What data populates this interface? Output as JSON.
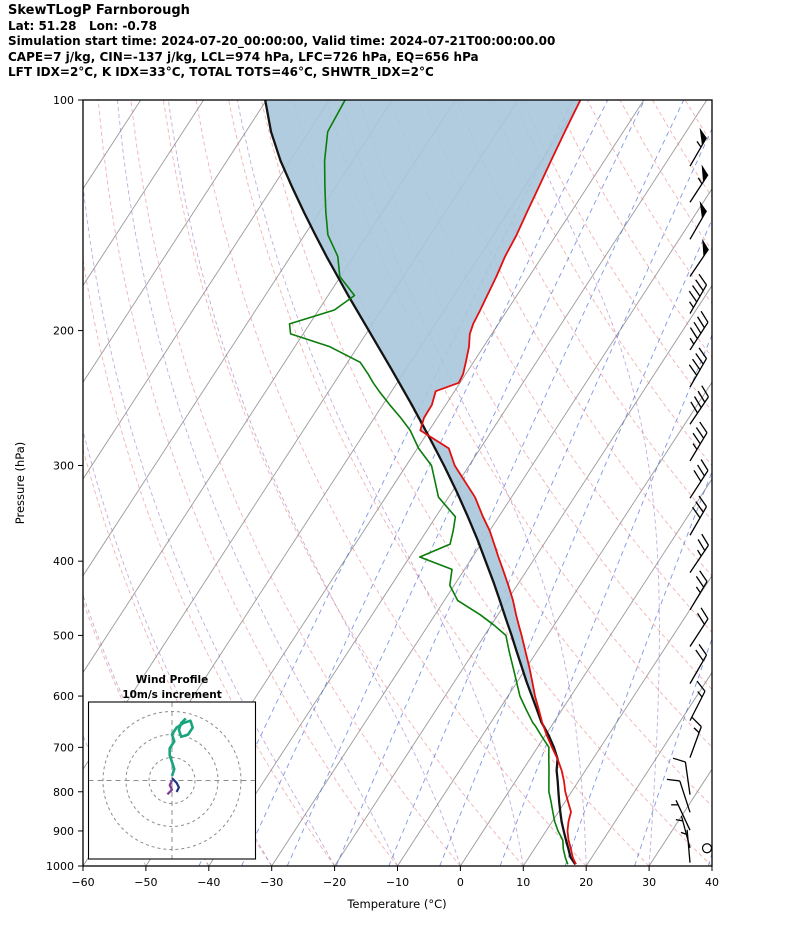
{
  "header": {
    "line1": "SkewTLogP Farnborough",
    "line2": "Lat: 51.28   Lon: -0.78",
    "line3": "Simulation start time: 2024-07-20_00:00:00, Valid time: 2024-07-21T00:00:00.00",
    "line4": "CAPE=7 j/kg, CIN=-137 j/kg, LCL=974 hPa, LFC=726 hPa, EQ=656 hPa",
    "line5": "LFT IDX=2°C, K IDX=33°C, TOTAL TOTS=46°C, SHWTR_IDX=2°C"
  },
  "indices": {
    "cape_jkg": 7,
    "cin_jkg": -137,
    "lcl_hpa": 974,
    "lfc_hpa": 726,
    "eq_hpa": 656,
    "lft_idx_c": 2,
    "k_idx_c": 33,
    "total_tots_c": 46,
    "shwtr_idx_c": 2,
    "lat": 51.28,
    "lon": -0.78
  },
  "chart_data": {
    "type": "skewt-logp",
    "title": "SkewTLogP Farnborough",
    "xlabel": "Temperature (°C)",
    "ylabel": "Pressure (hPa)",
    "xlim": [
      -60,
      40
    ],
    "ylim_hpa": [
      1000,
      100
    ],
    "t_ticks": [
      -60,
      -50,
      -40,
      -30,
      -20,
      -10,
      0,
      10,
      20,
      30,
      40
    ],
    "p_ticks": [
      100,
      200,
      300,
      400,
      500,
      600,
      700,
      800,
      900,
      1000
    ],
    "background": {
      "isotherm_step_c": 10,
      "dry_adiabats_theta_c": [
        -40,
        -30,
        -20,
        -10,
        0,
        10,
        20,
        30,
        40,
        50,
        60,
        70,
        80,
        90,
        100,
        110,
        120,
        130,
        140,
        150,
        160,
        170,
        180
      ],
      "moist_adiabat_start_c": [
        -60,
        -50,
        -40,
        -30,
        -20,
        -10,
        0,
        10,
        20,
        30,
        40
      ],
      "mixing_ratio_g_kg": [
        0.1,
        0.2,
        0.4,
        0.8,
        1.6,
        3,
        6,
        12,
        24,
        48
      ]
    },
    "sounding": {
      "pressure_hpa": [
        995,
        975,
        950,
        925,
        900,
        875,
        850,
        825,
        800,
        775,
        750,
        725,
        700,
        675,
        656,
        650,
        625,
        600,
        575,
        550,
        525,
        500,
        485,
        470,
        450,
        430,
        410,
        395,
        380,
        365,
        350,
        330,
        300,
        285,
        270,
        260,
        250,
        240,
        234,
        228,
        220,
        210,
        202,
        196,
        188,
        180,
        170,
        160,
        150,
        140,
        130,
        120,
        110,
        100
      ],
      "temperature_c": [
        18.2,
        17.0,
        15.8,
        14.5,
        13.4,
        12.6,
        12.0,
        10.5,
        9.0,
        7.7,
        6.2,
        4.4,
        2.3,
        0.2,
        -1.3,
        -1.8,
        -3.7,
        -5.7,
        -7.6,
        -9.6,
        -11.8,
        -14.1,
        -15.6,
        -17.1,
        -19.1,
        -21.4,
        -23.9,
        -25.9,
        -27.9,
        -30.0,
        -32.5,
        -35.8,
        -42.3,
        -45.0,
        -51.4,
        -52.1,
        -52.2,
        -53.0,
        -50.2,
        -50.4,
        -51.2,
        -52.3,
        -53.5,
        -54.0,
        -54.3,
        -54.7,
        -55.2,
        -55.9,
        -56.3,
        -57.0,
        -57.7,
        -58.5,
        -59.3,
        -60.1
      ],
      "dewpoint_c": [
        16.9,
        15.8,
        14.6,
        13.6,
        11.9,
        10.4,
        9.1,
        7.8,
        6.4,
        5.3,
        4.2,
        3.0,
        1.8,
        -0.7,
        -2.6,
        -3.3,
        -5.7,
        -8.1,
        -10.1,
        -12.2,
        -14.4,
        -16.6,
        -19.5,
        -22.8,
        -27.9,
        -30.7,
        -32.0,
        -38.4,
        -34.9,
        -35.8,
        -36.9,
        -41.6,
        -46.0,
        -49.8,
        -53.0,
        -55.8,
        -58.9,
        -62.0,
        -63.8,
        -65.5,
        -68.0,
        -74.4,
        -82.0,
        -83.2,
        -77.5,
        -75.8,
        -80.1,
        -82.5,
        -86.3,
        -89.0,
        -91.7,
        -94.5,
        -97.0,
        -97.5
      ]
    },
    "parcel": {
      "pressure_hpa": [
        995,
        974,
        950,
        925,
        900,
        875,
        850,
        825,
        800,
        775,
        750,
        725,
        700,
        675,
        656,
        650,
        625,
        600,
        575,
        550,
        525,
        500,
        475,
        450,
        425,
        400,
        375,
        350,
        325,
        300,
        275,
        250,
        225,
        200,
        180,
        160,
        150,
        140,
        130,
        120,
        110,
        100
      ],
      "temperature_c": [
        18.1,
        16.6,
        15.4,
        14.1,
        12.8,
        11.5,
        10.3,
        9.1,
        7.9,
        6.7,
        5.4,
        4.4,
        2.6,
        0.5,
        -1.3,
        -1.9,
        -4.0,
        -6.2,
        -8.5,
        -10.8,
        -13.2,
        -15.7,
        -18.4,
        -21.2,
        -24.2,
        -27.5,
        -31.0,
        -34.9,
        -39.2,
        -44.0,
        -49.4,
        -55.4,
        -62.2,
        -69.9,
        -76.8,
        -84.3,
        -88.3,
        -92.5,
        -96.9,
        -101.5,
        -106.0,
        -110.2
      ]
    },
    "shaded_region": {
      "from_hpa": 656,
      "to_hpa": 100
    },
    "wind_barbs": [
      {
        "p": 122,
        "kt": 55,
        "dir": 30
      },
      {
        "p": 136,
        "kt": 55,
        "dir": 33
      },
      {
        "p": 152,
        "kt": 50,
        "dir": 30
      },
      {
        "p": 170,
        "kt": 50,
        "dir": 34
      },
      {
        "p": 190,
        "kt": 45,
        "dir": 30
      },
      {
        "p": 212,
        "kt": 45,
        "dir": 33
      },
      {
        "p": 237,
        "kt": 40,
        "dir": 30
      },
      {
        "p": 265,
        "kt": 40,
        "dir": 34
      },
      {
        "p": 296,
        "kt": 35,
        "dir": 31
      },
      {
        "p": 331,
        "kt": 30,
        "dir": 33
      },
      {
        "p": 370,
        "kt": 30,
        "dir": 30
      },
      {
        "p": 414,
        "kt": 25,
        "dir": 34
      },
      {
        "p": 463,
        "kt": 25,
        "dir": 31
      },
      {
        "p": 517,
        "kt": 20,
        "dir": 33
      },
      {
        "p": 578,
        "kt": 20,
        "dir": 30
      },
      {
        "p": 646,
        "kt": 15,
        "dir": 27
      },
      {
        "p": 722,
        "kt": 15,
        "dir": 20
      },
      {
        "p": 807,
        "kt": 10,
        "dir": 352
      },
      {
        "p": 851,
        "kt": 10,
        "dir": 342
      },
      {
        "p": 898,
        "kt": 5,
        "dir": 335
      },
      {
        "p": 947,
        "kt": 5,
        "dir": 345
      },
      {
        "p": 990,
        "kt": 3,
        "dir": 355
      }
    ],
    "calm_marker_p": 948,
    "hodograph": {
      "title": "Wind Profile",
      "subtitle": "10m/s increment",
      "ring_interval_ms": 10,
      "rings_ms": [
        10,
        20,
        30
      ],
      "trace_uv_ms": [
        [
          0,
          2
        ],
        [
          1,
          5
        ],
        [
          0,
          8
        ],
        [
          -1,
          11
        ],
        [
          -1,
          14
        ],
        [
          1,
          17
        ],
        [
          0,
          20
        ],
        [
          2,
          23
        ],
        [
          5,
          25
        ],
        [
          8,
          26
        ],
        [
          9,
          23
        ],
        [
          7,
          20
        ],
        [
          4,
          19
        ],
        [
          3,
          22
        ],
        [
          4,
          25
        ],
        [
          6,
          27
        ]
      ],
      "trace_mid_uv_ms": [
        [
          0,
          1
        ],
        [
          2,
          -1
        ],
        [
          3,
          -3
        ],
        [
          2,
          -5
        ]
      ],
      "trace_low_uv_ms": [
        [
          0,
          0
        ],
        [
          -1,
          -2
        ],
        [
          0,
          -4
        ],
        [
          -2,
          -6
        ]
      ]
    },
    "colors": {
      "temperature": "#e01010",
      "dewpoint": "#0a7d0a",
      "parcel": "#141414",
      "shaded_area": "#a9c6da",
      "isotherm": "#9a9a9a",
      "dry_adiabat": "#e57373",
      "moist_adiabat": "#9467bd",
      "mixing_ratio": "#3f5fd0",
      "wind_barb": "#000000",
      "hodo_trace": "#18a47c",
      "hodo_trace_mid": "#24357f",
      "hodo_trace_low": "#7d3c98",
      "hodo_grid": "#8c8c8c",
      "frame": "#000000"
    }
  }
}
